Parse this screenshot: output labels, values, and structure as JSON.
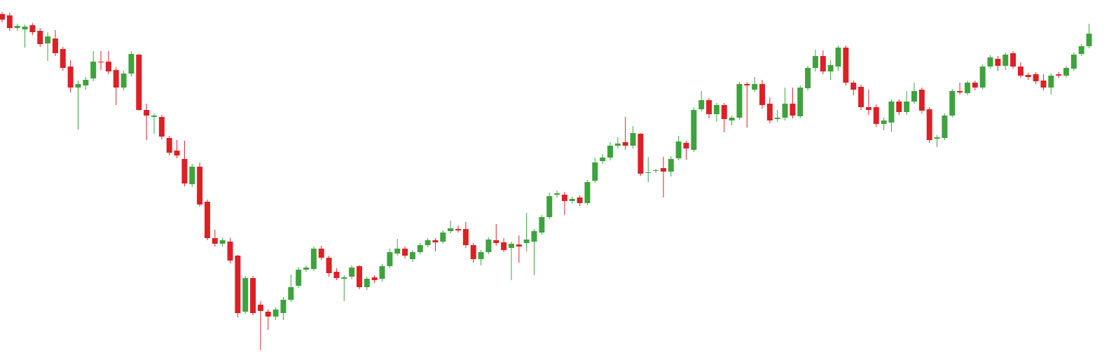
{
  "chart_data": {
    "type": "candlestick",
    "up_color": "#3ea33e",
    "down_color": "#dd2025",
    "ylim": [
      0,
      514
    ],
    "open": [
      494,
      492,
      474,
      472,
      478,
      470,
      452,
      459,
      444,
      419,
      389,
      392,
      402,
      426,
      426,
      414,
      389,
      409,
      436,
      357,
      347,
      347,
      317,
      299,
      287,
      251,
      276,
      226,
      174,
      166,
      169,
      149,
      69,
      117,
      79,
      69,
      62,
      67,
      86,
      106,
      129,
      130,
      159,
      146,
      126,
      116,
      119,
      134,
      104,
      118,
      116,
      134,
      152,
      159,
      144,
      154,
      164,
      171,
      169,
      184,
      187,
      187,
      164,
      144,
      154,
      171,
      168,
      160,
      165,
      167,
      169,
      182,
      204,
      236,
      236,
      227,
      232,
      224,
      256,
      284,
      289,
      306,
      311,
      306,
      323,
      268,
      270,
      274,
      269,
      288,
      310,
      300,
      358,
      371,
      351,
      364,
      342,
      346,
      394,
      386,
      394,
      366,
      344,
      346,
      366,
      348,
      388,
      417,
      434,
      412,
      419,
      446,
      396,
      390,
      361,
      361,
      337,
      339,
      369,
      354,
      369,
      386,
      358,
      316,
      317,
      349,
      384,
      381,
      396,
      389,
      419,
      430,
      420,
      438,
      419,
      407,
      408,
      399,
      389,
      408,
      406,
      416,
      437,
      448
    ],
    "high": [
      497,
      496,
      480,
      479,
      481,
      474,
      468,
      471,
      447,
      428,
      399,
      404,
      441,
      441,
      441,
      418,
      413,
      441,
      437,
      366,
      352,
      350,
      320,
      314,
      313,
      280,
      282,
      229,
      186,
      175,
      174,
      150,
      120,
      120,
      84,
      72,
      75,
      90,
      122,
      133,
      135,
      162,
      163,
      149,
      131,
      121,
      135,
      135,
      119,
      121,
      137,
      159,
      173,
      162,
      157,
      167,
      174,
      174,
      185,
      199,
      192,
      197,
      167,
      157,
      175,
      194,
      174,
      169,
      178,
      210,
      187,
      207,
      239,
      242,
      240,
      233,
      235,
      257,
      289,
      294,
      311,
      318,
      347,
      334,
      324,
      290,
      273,
      290,
      291,
      320,
      313,
      361,
      384,
      374,
      367,
      367,
      349,
      397,
      397,
      404,
      400,
      375,
      357,
      389,
      389,
      392,
      420,
      443,
      442,
      428,
      449,
      449,
      399,
      393,
      386,
      365,
      346,
      372,
      372,
      384,
      396,
      389,
      361,
      321,
      352,
      387,
      396,
      399,
      399,
      422,
      435,
      434,
      439,
      441,
      425,
      410,
      411,
      408,
      409,
      411,
      420,
      439,
      451,
      480
    ],
    "low": [
      482,
      470,
      470,
      446,
      464,
      447,
      427,
      434,
      413,
      382,
      329,
      386,
      398,
      414,
      408,
      364,
      385,
      405,
      356,
      314,
      323,
      315,
      292,
      288,
      248,
      247,
      219,
      171,
      162,
      162,
      138,
      61,
      66,
      64,
      14,
      43,
      57,
      57,
      83,
      103,
      126,
      127,
      143,
      119,
      114,
      84,
      115,
      101,
      100,
      110,
      112,
      131,
      149,
      145,
      140,
      151,
      161,
      155,
      166,
      181,
      182,
      160,
      139,
      135,
      151,
      163,
      154,
      114,
      139,
      155,
      121,
      179,
      201,
      232,
      207,
      223,
      220,
      221,
      253,
      280,
      285,
      302,
      300,
      302,
      263,
      254,
      267,
      232,
      262,
      285,
      286,
      297,
      355,
      345,
      340,
      325,
      335,
      343,
      332,
      383,
      359,
      338,
      340,
      342,
      345,
      345,
      385,
      412,
      408,
      400,
      413,
      392,
      378,
      357,
      350,
      333,
      328,
      326,
      350,
      350,
      366,
      352,
      310,
      304,
      314,
      346,
      379,
      378,
      385,
      386,
      416,
      413,
      414,
      416,
      403,
      400,
      394,
      385,
      379,
      403,
      403,
      413,
      434,
      445
    ],
    "close": [
      486,
      474,
      477,
      476,
      468,
      451,
      462,
      438,
      417,
      389,
      394,
      400,
      426,
      425,
      412,
      389,
      409,
      437,
      357,
      349,
      349,
      319,
      296,
      292,
      252,
      276,
      222,
      174,
      166,
      171,
      142,
      67,
      117,
      67,
      70,
      62,
      72,
      86,
      104,
      129,
      132,
      159,
      146,
      124,
      117,
      118,
      132,
      104,
      116,
      114,
      134,
      154,
      159,
      149,
      154,
      164,
      171,
      168,
      182,
      188,
      185,
      164,
      144,
      154,
      172,
      167,
      157,
      166,
      162,
      172,
      184,
      204,
      234,
      238,
      227,
      230,
      224,
      254,
      282,
      289,
      306,
      309,
      306,
      324,
      266,
      268,
      271,
      269,
      287,
      312,
      302,
      357,
      371,
      351,
      364,
      344,
      346,
      394,
      392,
      394,
      364,
      342,
      346,
      366,
      349,
      389,
      417,
      434,
      412,
      421,
      446,
      396,
      386,
      361,
      357,
      337,
      342,
      369,
      354,
      369,
      384,
      356,
      314,
      318,
      349,
      384,
      382,
      396,
      389,
      419,
      432,
      420,
      436,
      419,
      406,
      404,
      398,
      389,
      406,
      406,
      417,
      436,
      448,
      466
    ]
  }
}
